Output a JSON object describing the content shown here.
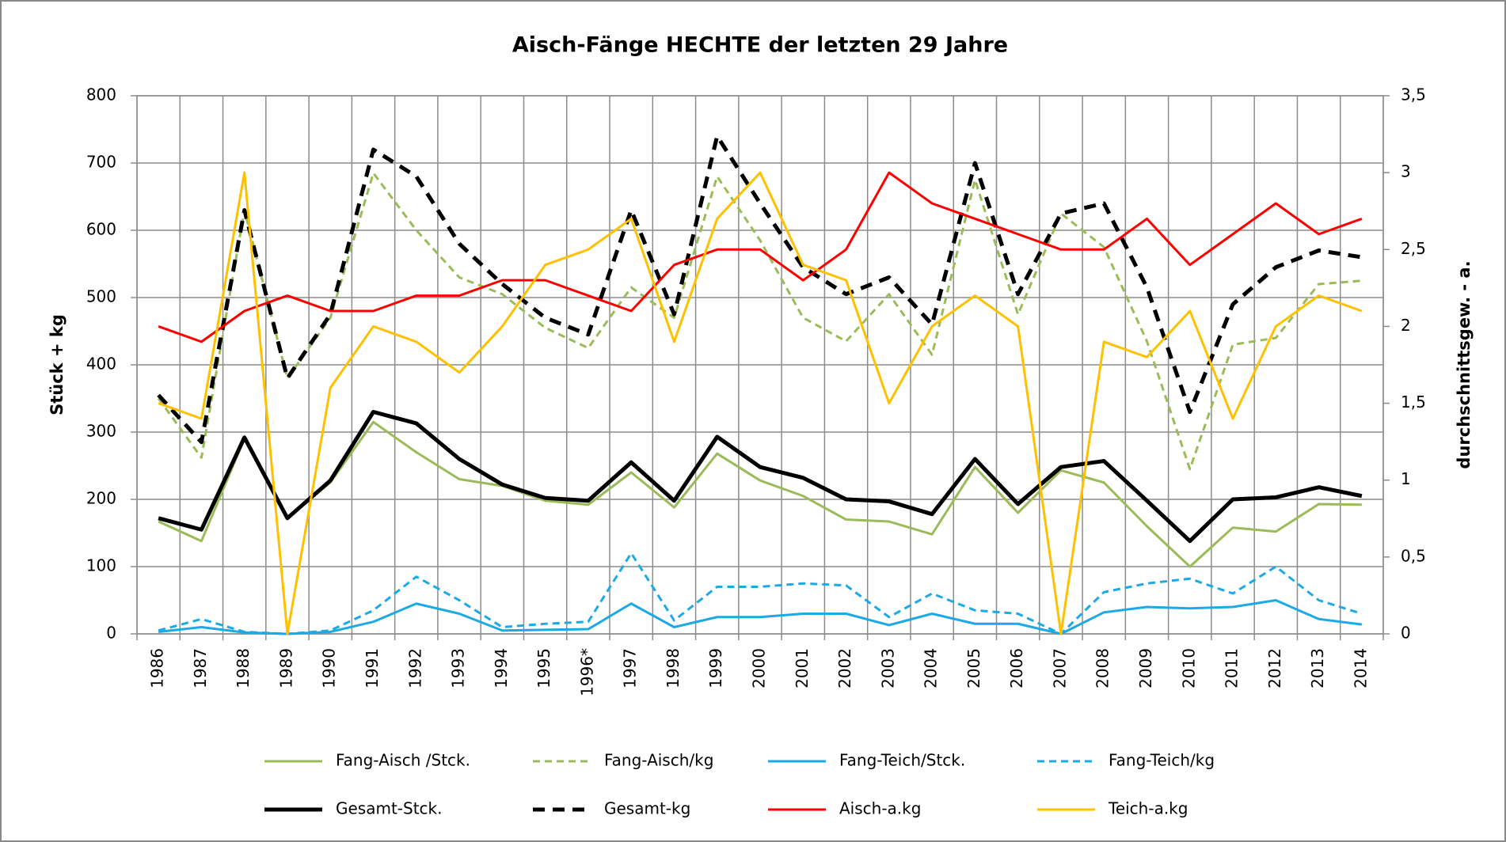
{
  "chart_data": {
    "type": "line",
    "title": "Aisch-Fänge HECHTE der letzten 29 Jahre",
    "ylabel": "Stück + kg",
    "y2label": "durchschnittsgew. - a.",
    "categories": [
      "1986",
      "1987",
      "1988",
      "1989",
      "1990",
      "1991",
      "1992",
      "1993",
      "1994",
      "1995",
      "1996*",
      "1997",
      "1998",
      "1999",
      "2000",
      "2001",
      "2002",
      "2003",
      "2004",
      "2005",
      "2006",
      "2007",
      "2008",
      "2009",
      "2010",
      "2011",
      "2012",
      "2013",
      "2014"
    ],
    "ylim": [
      0,
      800
    ],
    "yticks": [
      0,
      100,
      200,
      300,
      400,
      500,
      600,
      700,
      800
    ],
    "y2lim": [
      0,
      3.5
    ],
    "y2ticks": [
      0,
      {
        "value": 0.5,
        "label": "0,5"
      },
      1,
      {
        "value": 1.5,
        "label": "1,5"
      },
      2,
      {
        "value": 2.5,
        "label": "2,5"
      },
      3,
      {
        "value": 3.5,
        "label": "3,5"
      }
    ],
    "grid": true,
    "legend": "bottom",
    "series": [
      {
        "name": "Fang-Aisch /Stck.",
        "color": "#9bbb59",
        "dashed": false,
        "linewidth": 3,
        "values": [
          167,
          138,
          290,
          172,
          225,
          315,
          270,
          230,
          220,
          198,
          192,
          240,
          188,
          268,
          228,
          205,
          170,
          167,
          148,
          248,
          180,
          243,
          225,
          160,
          100,
          158,
          152,
          193,
          192
        ]
      },
      {
        "name": "Fang-Aisch/kg",
        "color": "#9bbb59",
        "dashed": true,
        "linewidth": 3,
        "values": [
          350,
          262,
          630,
          380,
          470,
          685,
          600,
          530,
          505,
          455,
          425,
          515,
          470,
          680,
          585,
          470,
          435,
          505,
          415,
          675,
          475,
          625,
          575,
          435,
          245,
          430,
          440,
          520,
          525
        ]
      },
      {
        "name": "Fang-Teich/Stck.",
        "color": "#1ca9e6",
        "dashed": false,
        "linewidth": 3,
        "values": [
          3,
          10,
          2,
          0,
          3,
          18,
          45,
          30,
          5,
          6,
          7,
          45,
          10,
          25,
          25,
          30,
          30,
          13,
          30,
          15,
          15,
          0,
          32,
          40,
          38,
          40,
          50,
          22,
          14
        ]
      },
      {
        "name": "Fang-Teich/kg",
        "color": "#1ca9e6",
        "dashed": true,
        "linewidth": 3,
        "values": [
          5,
          22,
          3,
          0,
          5,
          35,
          85,
          50,
          10,
          15,
          18,
          120,
          20,
          70,
          70,
          75,
          72,
          25,
          60,
          35,
          30,
          0,
          62,
          75,
          82,
          60,
          100,
          50,
          30
        ]
      },
      {
        "name": "Gesamt-Stck.",
        "color": "#000000",
        "dashed": false,
        "linewidth": 5,
        "values": [
          172,
          155,
          292,
          172,
          228,
          330,
          313,
          260,
          222,
          202,
          198,
          255,
          198,
          293,
          248,
          232,
          200,
          197,
          178,
          260,
          193,
          248,
          257,
          198,
          138,
          200,
          203,
          218,
          205
        ]
      },
      {
        "name": "Gesamt-kg",
        "color": "#000000",
        "dashed": true,
        "linewidth": 5,
        "values": [
          355,
          285,
          630,
          380,
          475,
          720,
          680,
          580,
          520,
          470,
          445,
          630,
          475,
          740,
          640,
          545,
          505,
          530,
          460,
          700,
          505,
          625,
          640,
          515,
          330,
          490,
          545,
          570,
          560
        ]
      },
      {
        "name": "Aisch-a.kg",
        "color": "#ff0000",
        "dashed": false,
        "linewidth": 3,
        "axis": "y2",
        "values": [
          2.0,
          1.9,
          2.1,
          2.2,
          2.1,
          2.1,
          2.2,
          2.2,
          2.3,
          2.3,
          2.2,
          2.1,
          2.4,
          2.5,
          2.5,
          2.3,
          2.5,
          3.0,
          2.8,
          2.7,
          2.6,
          2.5,
          2.5,
          2.7,
          2.4,
          2.6,
          2.8,
          2.6,
          2.7
        ]
      },
      {
        "name": "Teich-a.kg",
        "color": "#ffc000",
        "dashed": false,
        "linewidth": 3,
        "axis": "y2",
        "values": [
          1.5,
          1.4,
          3.0,
          0,
          1.6,
          2.0,
          1.9,
          1.7,
          2.0,
          2.4,
          2.5,
          2.7,
          1.9,
          2.7,
          3.0,
          2.4,
          2.3,
          1.5,
          2.0,
          2.2,
          2.0,
          0,
          1.9,
          1.8,
          2.1,
          1.4,
          2.0,
          2.2,
          2.1
        ]
      }
    ]
  }
}
